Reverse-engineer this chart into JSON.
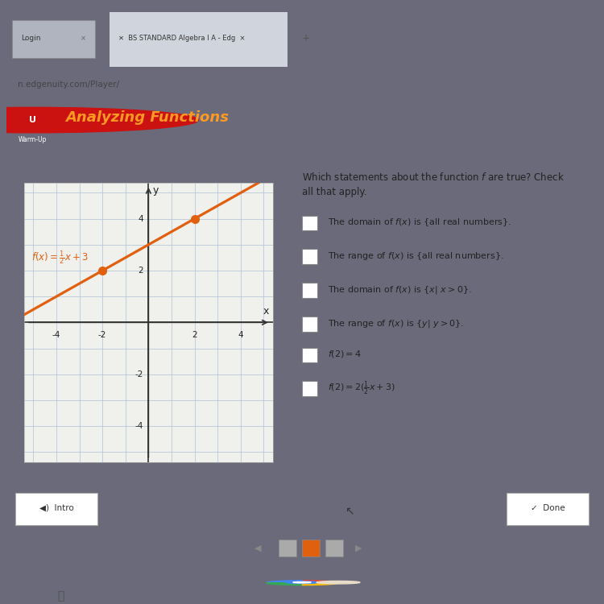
{
  "outer_bg": "#6a6a7a",
  "screen_bg": "#8a8fa0",
  "browser_tab_bg": "#9aa0b0",
  "browser_tab_active": "#d0d4dc",
  "tab_text_active": "#cc3300",
  "url_bar_bg": "#c8ccd4",
  "url_text": "n.edgenuity.com/Player/",
  "header_bg": "#1a2a4a",
  "header_text_color": "#ff9922",
  "header_text": "Analyzing Functions",
  "warm_up_color": "#ffffff",
  "content_bg": "#e8e8e4",
  "graph_bg": "#f0f0ec",
  "grid_color": "#b8c8d8",
  "axis_color": "#333333",
  "line_color": "#e06010",
  "dot_color": "#e06010",
  "func_label_color": "#e06010",
  "question_color": "#222222",
  "choice_color": "#222222",
  "footer_bg": "#c8ccd4",
  "taskbar_bg": "#7a7f90",
  "nav_bg": "#8a8fa0",
  "nav_active": "#e06010",
  "slope": 0.5,
  "intercept": 3,
  "dot_points": [
    [
      -2,
      2
    ],
    [
      2,
      4
    ]
  ],
  "axis_ticks": [
    -4,
    -2,
    2,
    4
  ],
  "choice_texts": [
    "The domain of f(x) is {all real numbers}.",
    "The range of f(x) is {all real numbers}.",
    "The domain of f(x) is {x| x > 0}.",
    "The range of f(x) is {y| y > 0}.",
    "f(2) = 4",
    "f(2) = 2(½x + 3)"
  ]
}
